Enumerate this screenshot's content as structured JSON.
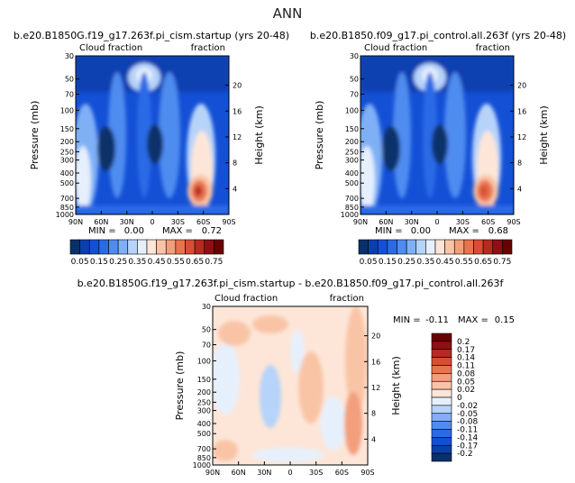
{
  "page_title": "ANN",
  "colors": {
    "abs_scale": [
      "#08306b",
      "#0b3fb0",
      "#1450d6",
      "#2a6ae6",
      "#4f8cf0",
      "#7fb0f6",
      "#b6d3fa",
      "#e6f0fc",
      "#fde6d8",
      "#f9c4a6",
      "#f39e7b",
      "#e8734f",
      "#d54f33",
      "#b72a20",
      "#900f14",
      "#6a0000"
    ],
    "diff_scale": [
      "#08306b",
      "#0b3fb0",
      "#1450d6",
      "#2a6ae6",
      "#4f8cf0",
      "#7fb0f6",
      "#b6d3fa",
      "#e6f0fc",
      "#fde6d8",
      "#f9c4a6",
      "#f39e7b",
      "#e8734f",
      "#d54f33",
      "#b72a20",
      "#900f14",
      "#6a0000"
    ]
  },
  "chart_data": [
    {
      "type": "heatmap",
      "title": "b.e20.B1850G.f19_g17.263f.pi_cism.startup (yrs 20-48)",
      "left_label": "Cloud fraction",
      "right_label": "fraction",
      "xlabel": "",
      "ylabel": "Pressure (mb)",
      "ylabel_right": "Height (km)",
      "xticks": [
        "90N",
        "60N",
        "30N",
        "0",
        "30S",
        "60S",
        "90S"
      ],
      "yticks": [
        "1000",
        "850",
        "700",
        "500",
        "400",
        "300",
        "250",
        "200",
        "150",
        "100",
        "70",
        "50",
        "30"
      ],
      "yticks_right": [
        "4",
        "8",
        "12",
        "16",
        "20"
      ],
      "ylim": [
        1000,
        30
      ],
      "stats": {
        "min_label": "MIN =",
        "min": "0.00",
        "max_label": "MAX =",
        "max": "0.72"
      },
      "colorbar_labels": [
        "0.05",
        "0.15",
        "0.25",
        "0.35",
        "0.45",
        "0.55",
        "0.65",
        "0.75"
      ],
      "colorbar_levels": [
        0.05,
        0.1,
        0.15,
        0.2,
        0.25,
        0.3,
        0.35,
        0.4,
        0.45,
        0.5,
        0.55,
        0.6,
        0.65,
        0.7,
        0.75
      ]
    },
    {
      "type": "heatmap",
      "title": "b.e20.B1850.f09_g17.pi_control.all.263f (yrs 20-48)",
      "left_label": "Cloud fraction",
      "right_label": "fraction",
      "xlabel": "",
      "ylabel": "Pressure (mb)",
      "ylabel_right": "Height (km)",
      "xticks": [
        "90N",
        "60N",
        "30N",
        "0",
        "30S",
        "60S",
        "90S"
      ],
      "yticks": [
        "1000",
        "850",
        "700",
        "500",
        "400",
        "300",
        "250",
        "200",
        "150",
        "100",
        "70",
        "50",
        "30"
      ],
      "yticks_right": [
        "4",
        "8",
        "12",
        "16",
        "20"
      ],
      "ylim": [
        1000,
        30
      ],
      "stats": {
        "min_label": "MIN =",
        "min": "0.00",
        "max_label": "MAX =",
        "max": "0.68"
      },
      "colorbar_labels": [
        "0.05",
        "0.15",
        "0.25",
        "0.35",
        "0.45",
        "0.55",
        "0.65",
        "0.75"
      ],
      "colorbar_levels": [
        0.05,
        0.1,
        0.15,
        0.2,
        0.25,
        0.3,
        0.35,
        0.4,
        0.45,
        0.5,
        0.55,
        0.6,
        0.65,
        0.7,
        0.75
      ]
    },
    {
      "type": "heatmap",
      "title": "b.e20.B1850G.f19_g17.263f.pi_cism.startup - b.e20.B1850.f09_g17.pi_control.all.263f",
      "left_label": "Cloud fraction",
      "right_label": "fraction",
      "xlabel": "",
      "ylabel": "Pressure (mb)",
      "ylabel_right": "Height (km)",
      "xticks": [
        "90N",
        "60N",
        "30N",
        "0",
        "30S",
        "60S",
        "90S"
      ],
      "yticks": [
        "1000",
        "850",
        "700",
        "500",
        "400",
        "300",
        "250",
        "200",
        "150",
        "100",
        "70",
        "50",
        "30"
      ],
      "yticks_right": [
        "4",
        "8",
        "12",
        "16",
        "20"
      ],
      "ylim": [
        1000,
        30
      ],
      "stats": {
        "min_label": "MIN =",
        "min": "-0.11",
        "max_label": "MAX =",
        "max": "0.15"
      },
      "colorbar_labels": [
        "0.2",
        "0.17",
        "0.14",
        "0.11",
        "0.08",
        "0.05",
        "0.02",
        "0",
        "-0.02",
        "-0.05",
        "-0.08",
        "-0.11",
        "-0.14",
        "-0.17",
        "-0.2"
      ],
      "colorbar_levels": [
        0.2,
        0.17,
        0.14,
        0.11,
        0.08,
        0.05,
        0.02,
        0,
        -0.02,
        -0.05,
        -0.08,
        -0.11,
        -0.14,
        -0.17,
        -0.2
      ]
    }
  ]
}
